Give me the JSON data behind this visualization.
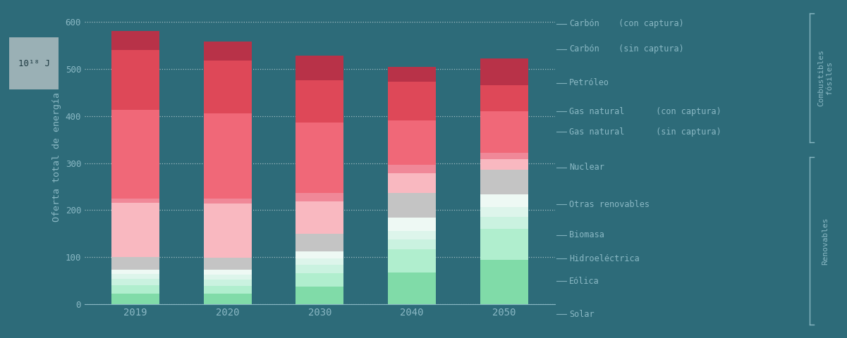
{
  "years": [
    "2019",
    "2020",
    "2030",
    "2040",
    "2050"
  ],
  "background_color": "#2d6b79",
  "bar_width": 0.52,
  "segments": [
    {
      "label": "Solar",
      "color": "#80dba8",
      "values": [
        22,
        22,
        38,
        68,
        95
      ]
    },
    {
      "label": "Eólica",
      "color": "#b0eece",
      "values": [
        18,
        17,
        28,
        48,
        65
      ]
    },
    {
      "label": "Hidroeléctrica",
      "color": "#caf2e0",
      "values": [
        14,
        14,
        18,
        22,
        25
      ]
    },
    {
      "label": "Biomasa",
      "color": "#ddf5eb",
      "values": [
        10,
        10,
        14,
        18,
        22
      ]
    },
    {
      "label": "Otras renovables",
      "color": "#eef9f4",
      "values": [
        10,
        10,
        14,
        28,
        27
      ]
    },
    {
      "label": "Nuclear",
      "color": "#c4c4c4",
      "values": [
        26,
        26,
        38,
        52,
        52
      ]
    },
    {
      "label": "Gas natural (sin captura)",
      "color": "#f9b8c0",
      "values": [
        115,
        115,
        68,
        42,
        22
      ]
    },
    {
      "label": "Gas natural (con captura)",
      "color": "#f08898",
      "values": [
        10,
        10,
        18,
        18,
        14
      ]
    },
    {
      "label": "Petróleo",
      "color": "#f06878",
      "values": [
        188,
        182,
        150,
        95,
        88
      ]
    },
    {
      "label": "Carbón (sin captura)",
      "color": "#de4858",
      "values": [
        128,
        112,
        90,
        82,
        55
      ]
    },
    {
      "label": "Carbón (con captura)",
      "color": "#b83248",
      "values": [
        40,
        40,
        52,
        32,
        58
      ]
    }
  ],
  "ylabel": "Oferta total de energía",
  "ylabel_unit": "10¹⁸ J",
  "ylim": [
    0,
    625
  ],
  "yticks": [
    0,
    100,
    200,
    300,
    400,
    500,
    600
  ],
  "tick_color": "#8ab8c4",
  "label_color": "#8ab8c4",
  "group_label_fossil": "Combustibles\nfósiles",
  "group_label_renewable": "Renovables",
  "legend_items": [
    {
      "main": "Carbón",
      "paren": " (con captura)"
    },
    {
      "main": "Carbón",
      "paren": " (sin captura)"
    },
    {
      "main": "Petróleo",
      "paren": ""
    },
    {
      "main": "Gas natural",
      "paren": " (con captura)"
    },
    {
      "main": "Gas natural",
      "paren": " (sin captura)"
    },
    {
      "main": "Nuclear",
      "paren": ""
    },
    {
      "main": "Otras renovables",
      "paren": ""
    },
    {
      "main": "Biomasa",
      "paren": ""
    },
    {
      "main": "Hidroeléctrica",
      "paren": ""
    },
    {
      "main": "Eólica",
      "paren": ""
    },
    {
      "main": "Solar",
      "paren": ""
    }
  ]
}
